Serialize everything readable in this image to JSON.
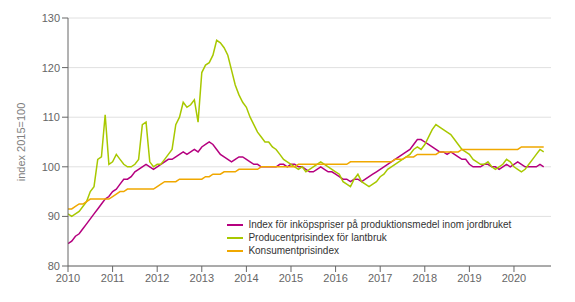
{
  "chart_data": {
    "type": "line",
    "ylabel": "index 2015=100",
    "xlim": [
      2010.0,
      2020.83
    ],
    "ylim": [
      80,
      130
    ],
    "xticks": [
      2010,
      2011,
      2012,
      2013,
      2014,
      2015,
      2016,
      2017,
      2018,
      2019,
      2020
    ],
    "yticks": [
      80,
      90,
      100,
      110,
      120,
      130
    ],
    "grid": true,
    "legend": "lower center",
    "x": [
      2010.0,
      2010.08333333,
      2010.16666667,
      2010.25,
      2010.33333333,
      2010.41666667,
      2010.5,
      2010.58333333,
      2010.66666667,
      2010.75,
      2010.83333333,
      2010.91666667,
      2011.0,
      2011.08333333,
      2011.16666667,
      2011.25,
      2011.33333333,
      2011.41666667,
      2011.5,
      2011.58333333,
      2011.66666667,
      2011.75,
      2011.83333333,
      2011.91666667,
      2012.0,
      2012.08333333,
      2012.16666667,
      2012.25,
      2012.33333333,
      2012.41666667,
      2012.5,
      2012.58333333,
      2012.66666667,
      2012.75,
      2012.83333333,
      2012.91666667,
      2013.0,
      2013.08333333,
      2013.16666667,
      2013.25,
      2013.33333333,
      2013.41666667,
      2013.5,
      2013.58333333,
      2013.66666667,
      2013.75,
      2013.83333333,
      2013.91666667,
      2014.0,
      2014.08333333,
      2014.16666667,
      2014.25,
      2014.33333333,
      2014.41666667,
      2014.5,
      2014.58333333,
      2014.66666667,
      2014.75,
      2014.83333333,
      2014.91666667,
      2015.0,
      2015.08333333,
      2015.16666667,
      2015.25,
      2015.33333333,
      2015.41666667,
      2015.5,
      2015.58333333,
      2015.66666667,
      2015.75,
      2015.83333333,
      2015.91666667,
      2016.0,
      2016.08333333,
      2016.16666667,
      2016.25,
      2016.33333333,
      2016.41666667,
      2016.5,
      2016.58333333,
      2016.66666667,
      2016.75,
      2016.83333333,
      2016.91666667,
      2017.0,
      2017.08333333,
      2017.16666667,
      2017.25,
      2017.33333333,
      2017.41666667,
      2017.5,
      2017.58333333,
      2017.66666667,
      2017.75,
      2017.83333333,
      2017.91666667,
      2018.0,
      2018.08333333,
      2018.16666667,
      2018.25,
      2018.33333333,
      2018.41666667,
      2018.5,
      2018.58333333,
      2018.66666667,
      2018.75,
      2018.83333333,
      2018.91666667,
      2019.0,
      2019.08333333,
      2019.16666667,
      2019.25,
      2019.33333333,
      2019.41666667,
      2019.5,
      2019.58333333,
      2019.66666667,
      2019.75,
      2019.83333333,
      2019.91666667,
      2020.0,
      2020.08333333,
      2020.16666667,
      2020.25,
      2020.33333333,
      2020.41666667,
      2020.5,
      2020.58333333,
      2020.66666667
    ],
    "series": [
      {
        "name": "Index för inköpspriser på produktionsmedel inom jordbruket",
        "color": "#b5007f",
        "values": [
          84.5,
          85.0,
          86.0,
          86.5,
          87.5,
          88.5,
          89.5,
          90.5,
          91.5,
          92.5,
          93.5,
          94.0,
          95.0,
          95.5,
          96.5,
          97.5,
          97.5,
          98.0,
          99.0,
          99.5,
          100.0,
          100.5,
          100.0,
          99.5,
          100.0,
          100.5,
          101.0,
          101.5,
          101.5,
          102.0,
          102.5,
          103.0,
          102.5,
          103.0,
          103.5,
          103.0,
          104.0,
          104.5,
          105.0,
          104.5,
          103.5,
          102.5,
          102.0,
          101.5,
          101.0,
          101.5,
          102.0,
          102.0,
          101.5,
          101.0,
          100.5,
          100.5,
          100.0,
          100.0,
          100.0,
          100.0,
          100.0,
          100.5,
          100.5,
          100.0,
          100.5,
          100.5,
          100.0,
          100.0,
          99.5,
          99.0,
          99.0,
          99.5,
          100.0,
          99.5,
          99.0,
          99.0,
          98.5,
          98.0,
          97.5,
          97.5,
          97.0,
          97.5,
          97.5,
          97.0,
          97.5,
          98.0,
          98.5,
          99.0,
          99.5,
          100.0,
          100.5,
          101.0,
          101.5,
          102.0,
          102.5,
          103.0,
          103.5,
          104.5,
          105.5,
          105.5,
          105.0,
          104.5,
          104.0,
          103.5,
          103.0,
          103.0,
          102.5,
          103.0,
          102.5,
          102.0,
          101.5,
          101.5,
          100.5,
          100.0,
          100.0,
          100.0,
          100.5,
          100.5,
          100.0,
          100.0,
          99.5,
          100.0,
          100.5,
          100.0,
          100.5,
          101.0,
          100.5,
          100.0,
          100.0,
          100.0,
          100.0,
          100.5,
          100.0
        ]
      },
      {
        "name": "Producentprisindex för lantbruk",
        "color": "#a8c800",
        "values": [
          90.5,
          90.0,
          90.5,
          91.0,
          92.0,
          93.0,
          95.0,
          96.0,
          101.5,
          102.0,
          110.5,
          100.5,
          101.0,
          102.5,
          101.5,
          100.5,
          100.0,
          100.0,
          100.5,
          101.5,
          108.5,
          109.0,
          101.0,
          100.0,
          100.5,
          100.5,
          101.5,
          102.5,
          103.5,
          108.5,
          110.0,
          113.0,
          112.0,
          112.5,
          113.5,
          109.0,
          119.0,
          120.5,
          121.0,
          122.5,
          125.5,
          125.0,
          124.0,
          122.5,
          119.5,
          116.5,
          114.5,
          113.0,
          112.0,
          110.0,
          108.5,
          107.0,
          106.0,
          105.0,
          105.0,
          104.0,
          103.5,
          102.5,
          101.5,
          101.0,
          100.5,
          100.0,
          99.5,
          100.0,
          99.0,
          99.5,
          100.0,
          100.5,
          101.0,
          100.5,
          100.0,
          99.5,
          99.0,
          98.5,
          97.0,
          96.5,
          96.0,
          97.5,
          98.5,
          97.0,
          96.5,
          96.0,
          96.5,
          97.0,
          98.0,
          98.5,
          99.5,
          100.0,
          100.5,
          101.0,
          101.5,
          102.0,
          102.5,
          103.5,
          104.0,
          103.5,
          104.5,
          106.0,
          107.5,
          108.5,
          108.0,
          107.5,
          107.0,
          106.5,
          105.5,
          104.5,
          103.5,
          103.0,
          102.5,
          101.5,
          101.0,
          100.5,
          100.5,
          101.0,
          100.0,
          99.5,
          100.0,
          100.5,
          101.5,
          101.0,
          100.0,
          99.5,
          99.0,
          99.5,
          100.5,
          101.5,
          102.5,
          103.5,
          103.0
        ]
      },
      {
        "name": "Konsumentprisindex",
        "color": "#f0a800",
        "values": [
          91.5,
          91.5,
          92.0,
          92.5,
          92.5,
          93.0,
          93.5,
          93.5,
          93.5,
          93.5,
          93.5,
          93.5,
          94.0,
          94.5,
          95.0,
          95.0,
          95.5,
          95.5,
          95.5,
          95.5,
          95.5,
          95.5,
          95.5,
          95.5,
          96.0,
          96.5,
          97.0,
          97.0,
          97.0,
          97.0,
          97.5,
          97.5,
          97.5,
          97.5,
          97.5,
          97.5,
          97.5,
          98.0,
          98.0,
          98.5,
          98.5,
          98.5,
          99.0,
          99.0,
          99.0,
          99.0,
          99.5,
          99.5,
          99.5,
          99.5,
          99.5,
          99.5,
          100.0,
          100.0,
          100.0,
          100.0,
          100.0,
          100.0,
          100.0,
          100.0,
          100.0,
          100.0,
          100.5,
          100.5,
          100.5,
          100.5,
          100.5,
          100.5,
          100.5,
          100.5,
          100.5,
          100.5,
          100.5,
          100.5,
          100.5,
          100.5,
          101.0,
          101.0,
          101.0,
          101.0,
          101.0,
          101.0,
          101.0,
          101.0,
          101.0,
          101.0,
          101.0,
          101.0,
          101.5,
          101.5,
          101.5,
          102.0,
          102.0,
          102.0,
          102.5,
          102.5,
          102.5,
          102.5,
          102.5,
          102.5,
          103.0,
          103.0,
          103.0,
          103.0,
          103.0,
          103.0,
          103.5,
          103.5,
          103.5,
          103.5,
          103.5,
          103.5,
          103.5,
          103.5,
          103.5,
          103.5,
          103.5,
          103.5,
          103.5,
          103.5,
          103.5,
          103.5,
          104.0,
          104.0,
          104.0,
          104.0,
          104.0,
          104.0,
          104.0
        ]
      }
    ]
  }
}
